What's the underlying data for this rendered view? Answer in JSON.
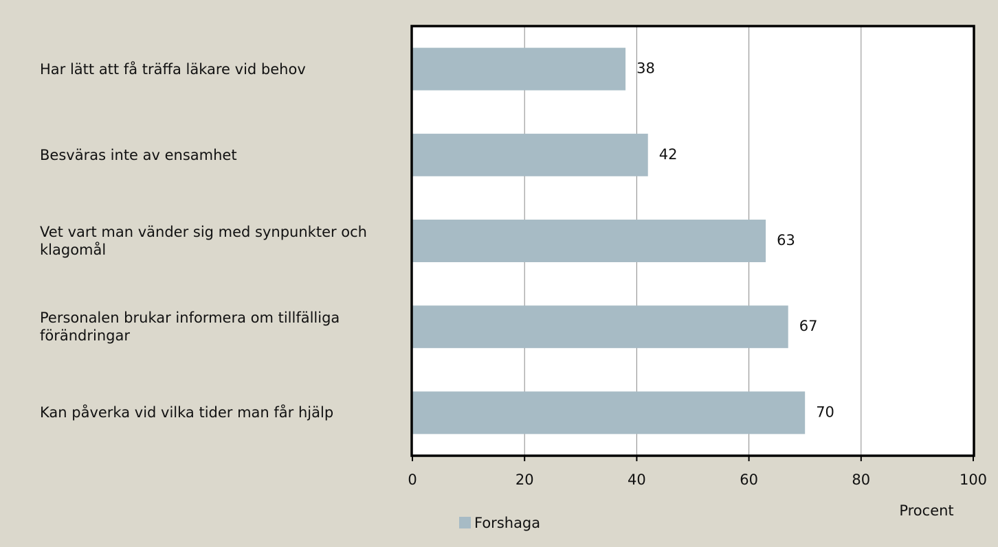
{
  "chart_data": {
    "type": "barh",
    "categories": [
      "Har lätt att få träffa läkare vid behov",
      "Besväras inte av ensamhet",
      "Vet vart man vänder sig med synpunkter och klagomål",
      "Personalen brukar informera om tillfälliga förändringar",
      "Kan påverka vid vilka tider man får hjälp"
    ],
    "series": [
      {
        "name": "Forshaga",
        "color": "#a7bbc5",
        "values": [
          38,
          42,
          63,
          67,
          70
        ]
      }
    ],
    "xlim": [
      0,
      100
    ],
    "xticks": [
      0,
      20,
      40,
      60,
      80,
      100
    ],
    "xlabel": "Procent",
    "grid": true,
    "legend": "bottom"
  }
}
